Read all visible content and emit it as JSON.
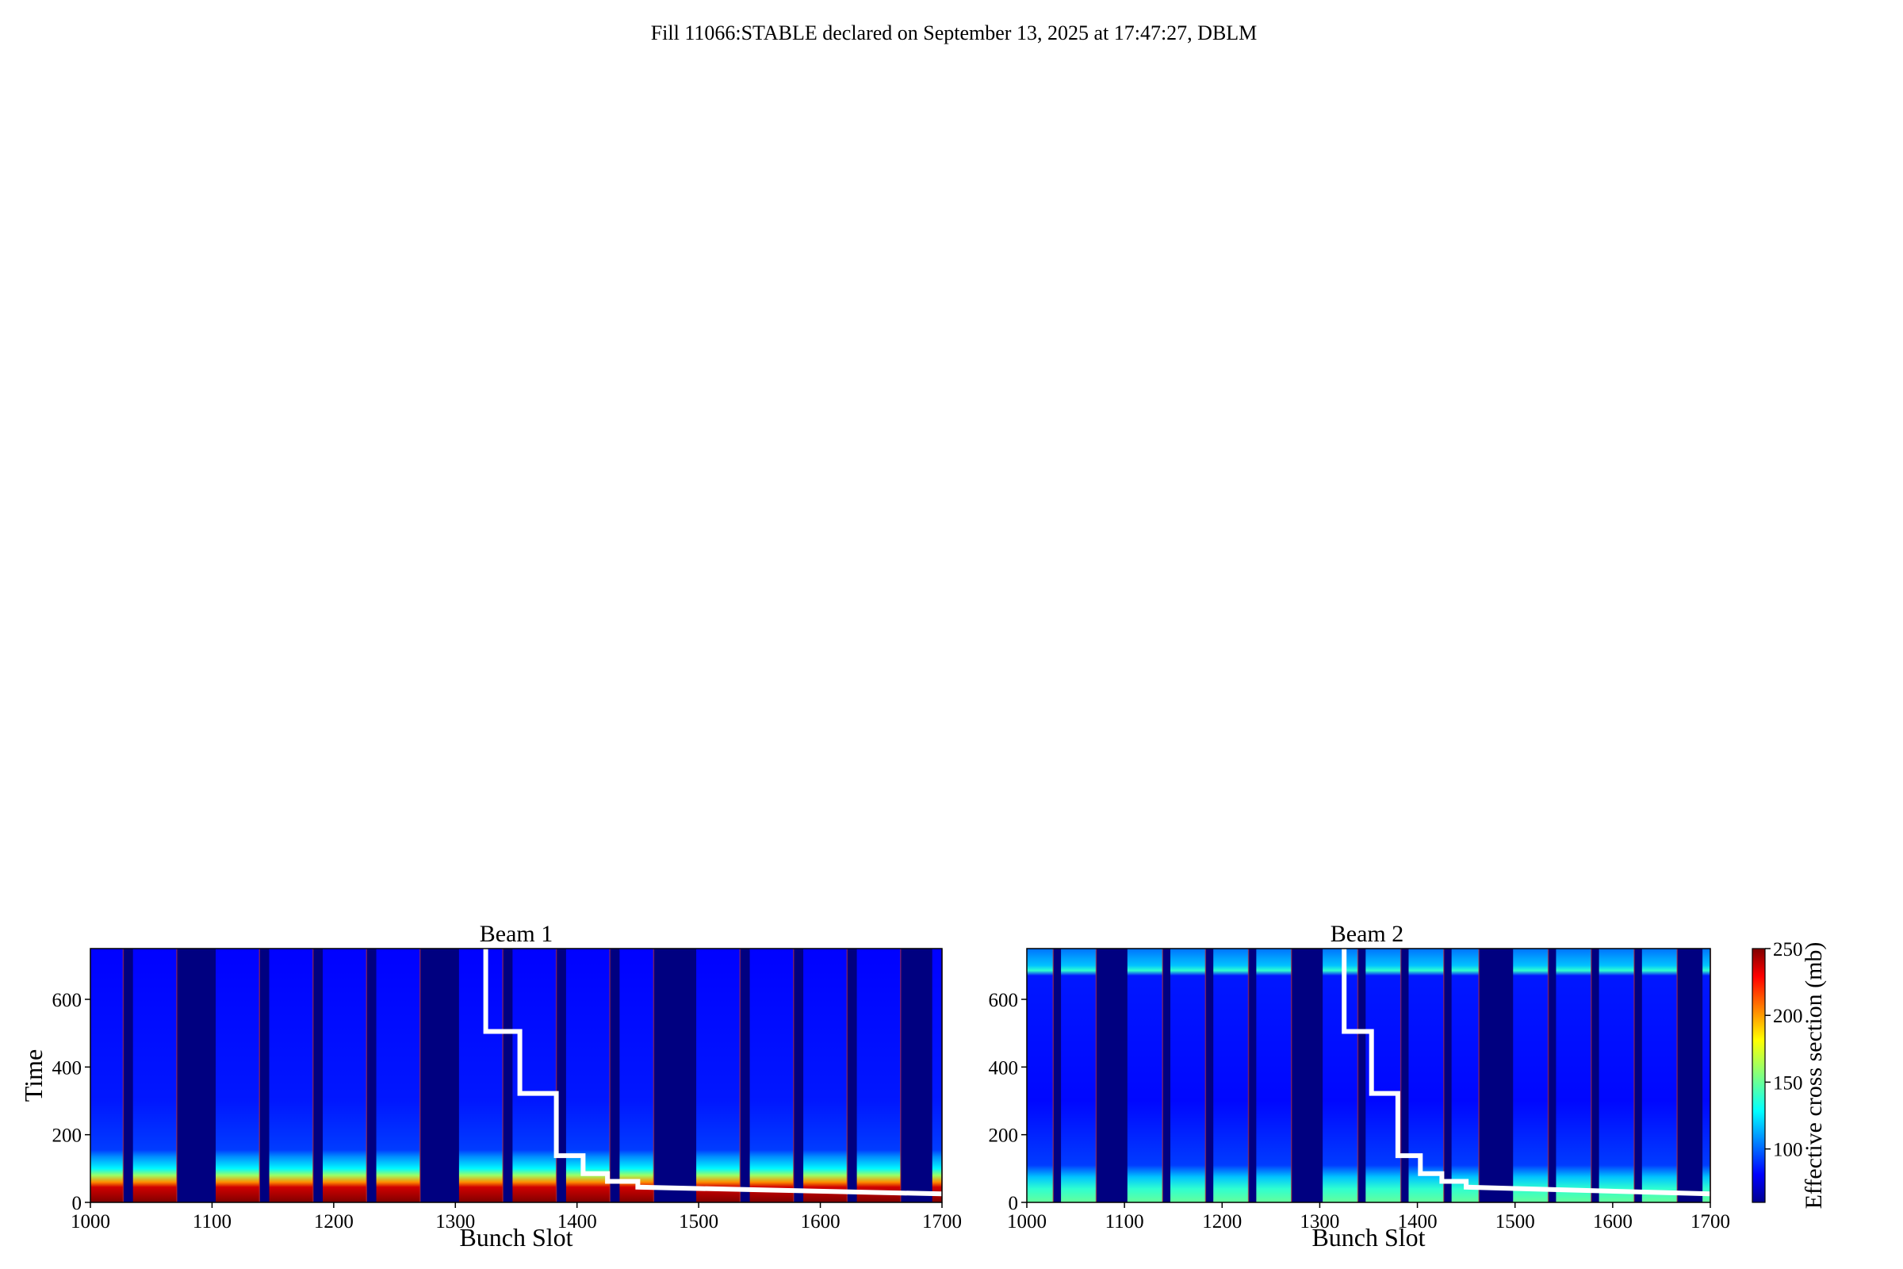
{
  "figure": {
    "suptitle": "Fill 11066:STABLE declared on September 13, 2025 at 17:47:27, DBLM"
  },
  "colorbar": {
    "label": "Effective cross section (mb)",
    "colormap": "jet",
    "range": [
      60,
      250
    ],
    "ticks": [
      100,
      150,
      200,
      250
    ]
  },
  "chart_data": [
    {
      "type": "heatmap",
      "title": "Beam 1",
      "xlabel": "Bunch Slot",
      "ylabel": "Time",
      "xlim": [
        1000,
        1700
      ],
      "ylim": [
        0,
        750
      ],
      "xticks": [
        1000,
        1100,
        1200,
        1300,
        1400,
        1500,
        1600,
        1700
      ],
      "yticks": [
        0,
        200,
        400,
        600
      ],
      "trains": [
        {
          "start": 1000,
          "end": 1027
        },
        {
          "start": 1035,
          "end": 1071
        },
        {
          "start": 1103,
          "end": 1139
        },
        {
          "start": 1147,
          "end": 1183
        },
        {
          "start": 1191,
          "end": 1227
        },
        {
          "start": 1235,
          "end": 1271
        },
        {
          "start": 1303,
          "end": 1339
        },
        {
          "start": 1347,
          "end": 1383
        },
        {
          "start": 1391,
          "end": 1427
        },
        {
          "start": 1435,
          "end": 1463
        },
        {
          "start": 1498,
          "end": 1534
        },
        {
          "start": 1542,
          "end": 1578
        },
        {
          "start": 1586,
          "end": 1622
        },
        {
          "start": 1630,
          "end": 1666
        },
        {
          "start": 1692,
          "end": 1700
        }
      ],
      "profile": [
        {
          "t": 0,
          "value": 250
        },
        {
          "t": 45,
          "value": 235
        },
        {
          "t": 60,
          "value": 200
        },
        {
          "t": 80,
          "value": 160
        },
        {
          "t": 100,
          "value": 130
        },
        {
          "t": 135,
          "value": 110
        },
        {
          "t": 155,
          "value": 95
        },
        {
          "t": 300,
          "value": 88
        },
        {
          "t": 750,
          "value": 84
        }
      ],
      "line": {
        "x": [
          1325,
          1325,
          1353,
          1353,
          1383,
          1383,
          1405,
          1405,
          1425,
          1425,
          1450,
          1450,
          1700
        ],
        "y": [
          750,
          505,
          505,
          322,
          322,
          138,
          138,
          85,
          85,
          62,
          62,
          45,
          25
        ]
      }
    },
    {
      "type": "heatmap",
      "title": "Beam 2",
      "xlabel": "Bunch Slot",
      "ylabel": "",
      "xlim": [
        1000,
        1700
      ],
      "ylim": [
        0,
        750
      ],
      "xticks": [
        1000,
        1100,
        1200,
        1300,
        1400,
        1500,
        1600,
        1700
      ],
      "yticks": [
        0,
        200,
        400,
        600
      ],
      "trains": [
        {
          "start": 1000,
          "end": 1027
        },
        {
          "start": 1035,
          "end": 1071
        },
        {
          "start": 1103,
          "end": 1139
        },
        {
          "start": 1147,
          "end": 1183
        },
        {
          "start": 1191,
          "end": 1227
        },
        {
          "start": 1235,
          "end": 1271
        },
        {
          "start": 1303,
          "end": 1339
        },
        {
          "start": 1347,
          "end": 1383
        },
        {
          "start": 1391,
          "end": 1427
        },
        {
          "start": 1435,
          "end": 1463
        },
        {
          "start": 1498,
          "end": 1534
        },
        {
          "start": 1542,
          "end": 1578
        },
        {
          "start": 1586,
          "end": 1622
        },
        {
          "start": 1630,
          "end": 1666
        },
        {
          "start": 1692,
          "end": 1700
        }
      ],
      "profile": [
        {
          "t": 0,
          "value": 150
        },
        {
          "t": 40,
          "value": 140
        },
        {
          "t": 75,
          "value": 120
        },
        {
          "t": 110,
          "value": 95
        },
        {
          "t": 300,
          "value": 85
        },
        {
          "t": 670,
          "value": 88
        },
        {
          "t": 685,
          "value": 140
        },
        {
          "t": 700,
          "value": 120
        },
        {
          "t": 750,
          "value": 105
        }
      ],
      "line": {
        "x": [
          1325,
          1325,
          1353,
          1353,
          1380,
          1380,
          1403,
          1403,
          1425,
          1425,
          1450,
          1450,
          1700
        ],
        "y": [
          750,
          505,
          505,
          322,
          322,
          138,
          138,
          85,
          85,
          62,
          62,
          45,
          25
        ]
      }
    }
  ]
}
